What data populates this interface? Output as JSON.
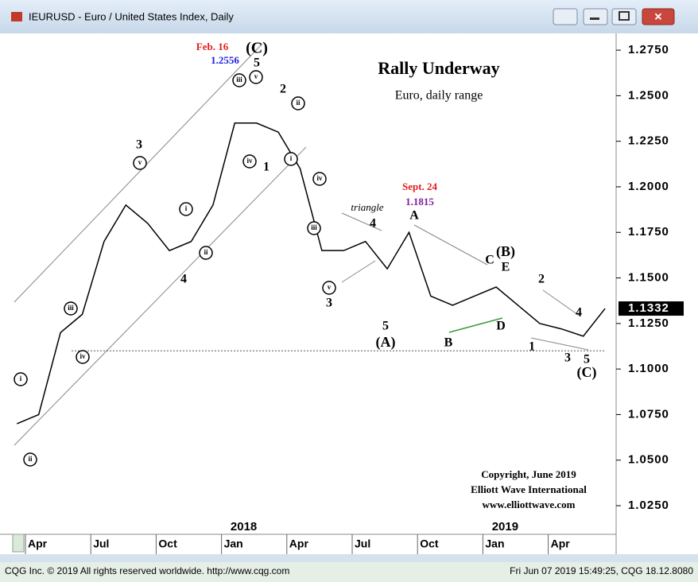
{
  "window": {
    "title": "IEURUSD - Euro / United States Index, Daily"
  },
  "status": {
    "left": "CQG Inc. © 2019 All rights reserved worldwide. http://www.cqg.com",
    "right": "Fri Jun 07 2019 15:49:25, CQG 18.12.8080"
  },
  "chart_data": {
    "type": "line",
    "title": "Rally Underway",
    "subtitle": "Euro, daily range",
    "color": "#000000",
    "x": [
      "2017-03",
      "2017-04",
      "2017-05",
      "2017-06",
      "2017-07",
      "2017-08",
      "2017-09",
      "2017-10",
      "2017-11",
      "2017-12",
      "2018-01",
      "2018-02",
      "2018-03",
      "2018-04",
      "2018-05",
      "2018-06",
      "2018-07",
      "2018-08",
      "2018-09",
      "2018-10",
      "2018-11",
      "2018-12",
      "2019-01",
      "2019-02",
      "2019-03",
      "2019-04",
      "2019-05",
      "2019-06"
    ],
    "values": [
      1.07,
      1.075,
      1.12,
      1.13,
      1.17,
      1.19,
      1.18,
      1.165,
      1.17,
      1.19,
      1.235,
      1.235,
      1.23,
      1.21,
      1.165,
      1.165,
      1.17,
      1.155,
      1.175,
      1.14,
      1.135,
      1.14,
      1.145,
      1.135,
      1.125,
      1.122,
      1.118,
      1.1332
    ],
    "ylim": [
      1.0093,
      1.2842
    ],
    "yticks": [
      {
        "value": 1.025,
        "label": "1.0250"
      },
      {
        "value": 1.05,
        "label": "1.0500"
      },
      {
        "value": 1.075,
        "label": "1.0750"
      },
      {
        "value": 1.1,
        "label": "1.1000"
      },
      {
        "value": 1.125,
        "label": "1.1250"
      },
      {
        "value": 1.15,
        "label": "1.1500"
      },
      {
        "value": 1.175,
        "label": "1.1750"
      },
      {
        "value": 1.2,
        "label": "1.2000"
      },
      {
        "value": 1.225,
        "label": "1.2250"
      },
      {
        "value": 1.25,
        "label": "1.2500"
      },
      {
        "value": 1.275,
        "label": "1.2750"
      }
    ],
    "xticks": [
      {
        "value": "2017-04",
        "label": "Apr"
      },
      {
        "value": "2017-07",
        "label": "Jul"
      },
      {
        "value": "2017-10",
        "label": "Oct"
      },
      {
        "value": "2018-01",
        "label": "Jan"
      },
      {
        "value": "2018-04",
        "label": "Apr"
      },
      {
        "value": "2018-07",
        "label": "Jul"
      },
      {
        "value": "2018-10",
        "label": "Oct"
      },
      {
        "value": "2019-01",
        "label": "Jan"
      },
      {
        "value": "2019-04",
        "label": "Apr"
      }
    ],
    "years": [
      {
        "value": "2018-01",
        "label": "2018"
      },
      {
        "value": "2019-01",
        "label": "2019"
      }
    ],
    "last_price": {
      "value": 1.1332,
      "label": "1.1332"
    },
    "reference_line": 1.11,
    "annotations": [
      "Feb. 16",
      "1.2556",
      "(C)",
      "5",
      "iii",
      "v",
      "2",
      "ii",
      "iv",
      "1",
      "i",
      "iv",
      "iii",
      "v",
      "3",
      "triangle",
      "4",
      "Sept. 24",
      "1.1815",
      "A",
      "5",
      "(A)",
      "C",
      "(B)",
      "E",
      "D",
      "B",
      "2",
      "4",
      "1",
      "3",
      "5",
      "(C)",
      "3",
      "v",
      "i",
      "ii",
      "4",
      "iii",
      "iv",
      "i",
      "ii"
    ],
    "copyright": [
      "Copyright, June 2019",
      "Elliott Wave International",
      "www.elliottwave.com"
    ]
  }
}
